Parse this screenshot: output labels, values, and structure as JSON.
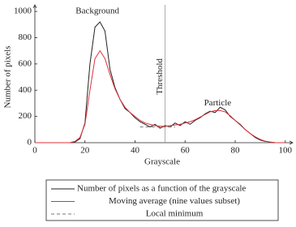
{
  "chart_data": {
    "type": "line",
    "xlabel": "Grayscale",
    "ylabel": "Number of pixels",
    "xlim": [
      0,
      103
    ],
    "ylim": [
      0,
      1050
    ],
    "xticks": [
      0,
      20,
      40,
      60,
      80,
      100
    ],
    "yticks": [
      0,
      200,
      400,
      600,
      800,
      1000
    ],
    "x": [
      0,
      2,
      4,
      6,
      8,
      10,
      12,
      14,
      16,
      18,
      20,
      22,
      24,
      26,
      28,
      30,
      32,
      34,
      36,
      38,
      40,
      42,
      44,
      46,
      48,
      50,
      52,
      54,
      56,
      58,
      60,
      62,
      64,
      66,
      68,
      70,
      72,
      74,
      76,
      78,
      80,
      82,
      84,
      86,
      88,
      90,
      92,
      94,
      96,
      98,
      100
    ],
    "series": [
      {
        "name": "Number of pixels as a function of the grayscale",
        "color": "#222222",
        "dash": false,
        "values": [
          0,
          0,
          0,
          0,
          0,
          0,
          0,
          0,
          5,
          30,
          150,
          600,
          880,
          920,
          850,
          560,
          420,
          330,
          260,
          230,
          190,
          160,
          140,
          120,
          140,
          110,
          130,
          120,
          150,
          130,
          160,
          140,
          170,
          190,
          220,
          240,
          230,
          270,
          250,
          200,
          170,
          140,
          100,
          70,
          40,
          20,
          10,
          5,
          0,
          0,
          0
        ]
      },
      {
        "name": "Moving average (nine values subset)",
        "color": "#e0303a",
        "dash": false,
        "values": [
          0,
          0,
          0,
          0,
          0,
          0,
          0,
          0,
          10,
          40,
          140,
          400,
          640,
          700,
          640,
          520,
          410,
          330,
          270,
          230,
          200,
          170,
          150,
          140,
          130,
          125,
          125,
          130,
          135,
          140,
          150,
          160,
          175,
          195,
          215,
          235,
          245,
          245,
          235,
          205,
          170,
          135,
          100,
          70,
          45,
          25,
          12,
          5,
          0,
          0,
          0
        ]
      },
      {
        "name": "Local minimum",
        "color": "#777777",
        "dash": true,
        "x": [
          42,
          56
        ],
        "values": [
          120,
          120
        ]
      }
    ],
    "threshold": {
      "label": "Threshold",
      "x": 52
    },
    "annotations": [
      {
        "text": "Background",
        "x": 25,
        "y": 1000
      },
      {
        "text": "Particle",
        "x": 73,
        "y": 300
      }
    ]
  }
}
